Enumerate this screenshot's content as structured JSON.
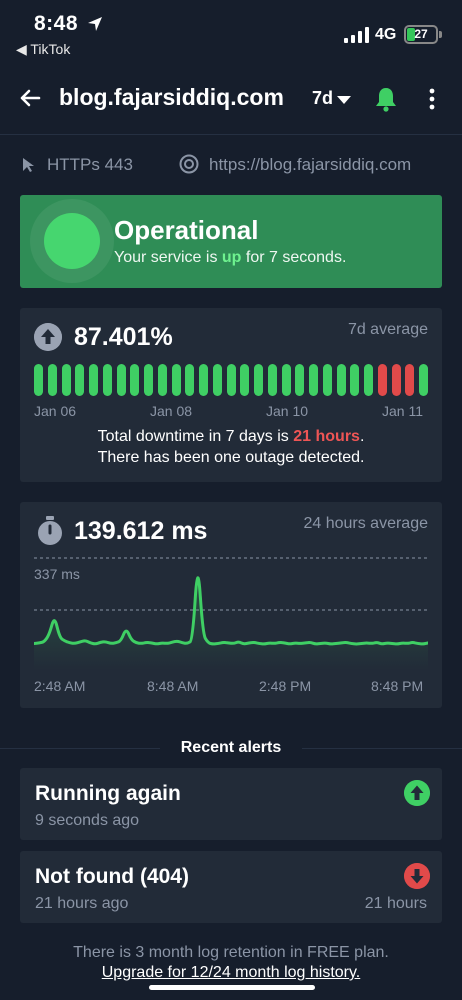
{
  "status_bar": {
    "time": "8:48",
    "back_app": "◀ TikTok",
    "network": "4G",
    "battery": "27",
    "battery_level": 0.27
  },
  "header": {
    "title": "blog.fajarsiddiq.com",
    "range": "7d",
    "icons": [
      "back-arrow-icon",
      "bell-icon",
      "more-vertical-icon"
    ]
  },
  "info": {
    "protocol": "HTTPs 443",
    "url": "https://blog.fajarsiddiq.com"
  },
  "status": {
    "title": "Operational",
    "sub_prefix": "Your service is ",
    "sub_state": "up",
    "sub_suffix": " for 7 seconds."
  },
  "uptime": {
    "value": "87.401%",
    "avg_label": "7d average",
    "dates": [
      "Jan 06",
      "Jan 08",
      "Jan 10",
      "Jan 11"
    ],
    "bars": [
      "up",
      "up",
      "up",
      "up",
      "up",
      "up",
      "up",
      "up",
      "up",
      "up",
      "up",
      "up",
      "up",
      "up",
      "up",
      "up",
      "up",
      "up",
      "up",
      "up",
      "up",
      "up",
      "up",
      "up",
      "up",
      "down",
      "down",
      "down",
      "up"
    ],
    "downtime_prefix": "Total downtime in 7 days is ",
    "downtime_hours": "21 hours",
    "downtime_suffix": ".",
    "outage_text": "There has been one outage detected.",
    "colors": {
      "up": "#3fcf64",
      "down": "#e14a4a"
    }
  },
  "response": {
    "value": "139.612 ms",
    "avg_label": "24 hours average",
    "max_label": "337 ms",
    "times": [
      "2:48 AM",
      "8:48 AM",
      "2:48 PM",
      "8:48 PM"
    ],
    "series": [
      60,
      62,
      65,
      90,
      150,
      80,
      68,
      62,
      60,
      65,
      70,
      62,
      58,
      64,
      66,
      60,
      62,
      68,
      110,
      72,
      62,
      60,
      64,
      62,
      58,
      62,
      60,
      64,
      68,
      62,
      60,
      70,
      337,
      90,
      62,
      58,
      60,
      64,
      62,
      60,
      66,
      58,
      62,
      64,
      60,
      58,
      62,
      60,
      64,
      62,
      58,
      62,
      60,
      62,
      64,
      58,
      60,
      62,
      58,
      60,
      62,
      64,
      60,
      58,
      60,
      62,
      60,
      64,
      58,
      62,
      60,
      58,
      62,
      60,
      64,
      60,
      58,
      62
    ],
    "y_max": 337,
    "line_color": "#3fcf64"
  },
  "alerts": {
    "title": "Recent alerts",
    "items": [
      {
        "title": "Running again",
        "time": "9 seconds ago",
        "duration": "",
        "type": "up"
      },
      {
        "title": "Not found (404)",
        "time": "21 hours ago",
        "duration": "21 hours",
        "type": "down"
      }
    ]
  },
  "footer": {
    "note": "There is 3 month log retention in FREE plan.",
    "link": "Upgrade for 12/24 month log history."
  }
}
